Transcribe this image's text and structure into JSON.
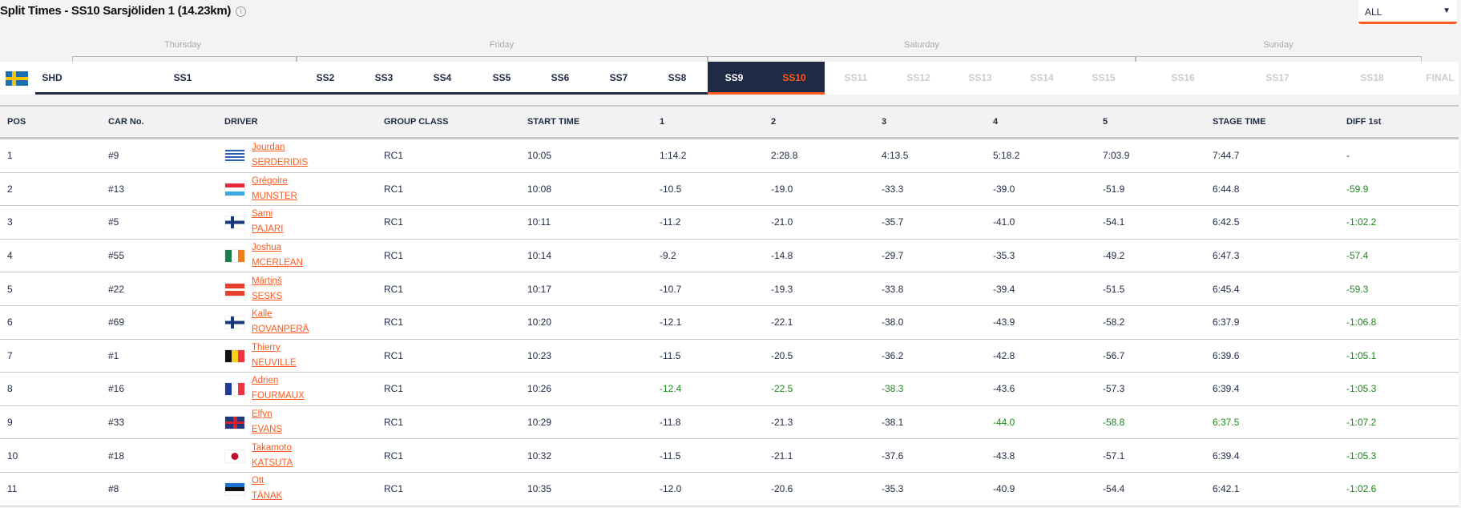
{
  "header": {
    "title": "Split Times - SS10 Sarsjöliden 1 (14.23km)",
    "info_icon": "i"
  },
  "filter": {
    "selected": "ALL",
    "caret": "▼"
  },
  "days": [
    "Thursday",
    "Friday",
    "Saturday",
    "Sunday"
  ],
  "country": {
    "code": "SHD"
  },
  "stages": [
    {
      "label": "SS1",
      "state": "normal"
    },
    {
      "label": "SS2",
      "state": "normal"
    },
    {
      "label": "SS3",
      "state": "normal"
    },
    {
      "label": "SS4",
      "state": "normal"
    },
    {
      "label": "SS5",
      "state": "normal"
    },
    {
      "label": "SS6",
      "state": "normal"
    },
    {
      "label": "SS7",
      "state": "normal"
    },
    {
      "label": "SS8",
      "state": "normal"
    },
    {
      "label": "SS9",
      "state": "sel"
    },
    {
      "label": "SS10",
      "state": "cur"
    },
    {
      "label": "SS11",
      "state": "dis"
    },
    {
      "label": "SS12",
      "state": "dis"
    },
    {
      "label": "SS13",
      "state": "dis"
    },
    {
      "label": "SS14",
      "state": "dis"
    },
    {
      "label": "SS15",
      "state": "dis"
    },
    {
      "label": "SS16",
      "state": "dis"
    },
    {
      "label": "SS17",
      "state": "dis"
    },
    {
      "label": "SS18",
      "state": "dis"
    },
    {
      "label": "FINAL",
      "state": "dis"
    }
  ],
  "columns": [
    "POS",
    "CAR No.",
    "DRIVER",
    "GROUP CLASS",
    "START TIME",
    "1",
    "2",
    "3",
    "4",
    "5",
    "STAGE TIME",
    "DIFF 1st"
  ],
  "colors": {
    "accent": "#ff5a1f",
    "navy": "#1f2a44",
    "best": "#1a8a1a"
  },
  "rows": [
    {
      "pos": "1",
      "car": "#9",
      "first": "Jourdan",
      "last": "SERDERIDIS",
      "flag": "gr",
      "cls": "RC1",
      "start": "10:05",
      "splits": [
        "1:14.2",
        "2:28.8",
        "4:13.5",
        "5:18.2",
        "7:03.9"
      ],
      "stage": "7:44.7",
      "diff": "-",
      "green": []
    },
    {
      "pos": "2",
      "car": "#13",
      "first": "Grégoire",
      "last": "MUNSTER",
      "flag": "lu",
      "cls": "RC1",
      "start": "10:08",
      "splits": [
        "-10.5",
        "-19.0",
        "-33.3",
        "-39.0",
        "-51.9"
      ],
      "stage": "6:44.8",
      "diff": "-59.9",
      "green": [
        7
      ]
    },
    {
      "pos": "3",
      "car": "#5",
      "first": "Sami",
      "last": "PAJARI",
      "flag": "fi",
      "cls": "RC1",
      "start": "10:11",
      "splits": [
        "-11.2",
        "-21.0",
        "-35.7",
        "-41.0",
        "-54.1"
      ],
      "stage": "6:42.5",
      "diff": "-1:02.2",
      "green": [
        7
      ]
    },
    {
      "pos": "4",
      "car": "#55",
      "first": "Joshua",
      "last": "MCERLEAN",
      "flag": "ie",
      "cls": "RC1",
      "start": "10:14",
      "splits": [
        "-9.2",
        "-14.8",
        "-29.7",
        "-35.3",
        "-49.2"
      ],
      "stage": "6:47.3",
      "diff": "-57.4",
      "green": [
        7
      ]
    },
    {
      "pos": "5",
      "car": "#22",
      "first": "Mārtiņš",
      "last": "SESKS",
      "flag": "lv",
      "cls": "RC1",
      "start": "10:17",
      "splits": [
        "-10.7",
        "-19.3",
        "-33.8",
        "-39.4",
        "-51.5"
      ],
      "stage": "6:45.4",
      "diff": "-59.3",
      "green": [
        7
      ]
    },
    {
      "pos": "6",
      "car": "#69",
      "first": "Kalle",
      "last": "ROVANPERÄ",
      "flag": "fi",
      "cls": "RC1",
      "start": "10:20",
      "splits": [
        "-12.1",
        "-22.1",
        "-38.0",
        "-43.9",
        "-58.2"
      ],
      "stage": "6:37.9",
      "diff": "-1:06.8",
      "green": [
        7
      ]
    },
    {
      "pos": "7",
      "car": "#1",
      "first": "Thierry",
      "last": "NEUVILLE",
      "flag": "be",
      "cls": "RC1",
      "start": "10:23",
      "splits": [
        "-11.5",
        "-20.5",
        "-36.2",
        "-42.8",
        "-56.7"
      ],
      "stage": "6:39.6",
      "diff": "-1:05.1",
      "green": [
        7
      ]
    },
    {
      "pos": "8",
      "car": "#16",
      "first": "Adrien",
      "last": "FOURMAUX",
      "flag": "fr",
      "cls": "RC1",
      "start": "10:26",
      "splits": [
        "-12.4",
        "-22.5",
        "-38.3",
        "-43.6",
        "-57.3"
      ],
      "stage": "6:39.4",
      "diff": "-1:05.3",
      "green": [
        0,
        1,
        2,
        7
      ]
    },
    {
      "pos": "9",
      "car": "#33",
      "first": "Elfyn",
      "last": "EVANS",
      "flag": "gb",
      "cls": "RC1",
      "start": "10:29",
      "splits": [
        "-11.8",
        "-21.3",
        "-38.1",
        "-44.0",
        "-58.8"
      ],
      "stage": "6:37.5",
      "diff": "-1:07.2",
      "green": [
        3,
        4,
        5,
        7
      ]
    },
    {
      "pos": "10",
      "car": "#18",
      "first": "Takamoto",
      "last": "KATSUTA",
      "flag": "jp",
      "cls": "RC1",
      "start": "10:32",
      "splits": [
        "-11.5",
        "-21.1",
        "-37.6",
        "-43.8",
        "-57.1"
      ],
      "stage": "6:39.4",
      "diff": "-1:05.3",
      "green": [
        7
      ]
    },
    {
      "pos": "11",
      "car": "#8",
      "first": "Ott",
      "last": "TÄNAK",
      "flag": "ee",
      "cls": "RC1",
      "start": "10:35",
      "splits": [
        "-12.0",
        "-20.6",
        "-35.3",
        "-40.9",
        "-54.4"
      ],
      "stage": "6:42.1",
      "diff": "-1:02.6",
      "green": [
        7
      ]
    }
  ]
}
